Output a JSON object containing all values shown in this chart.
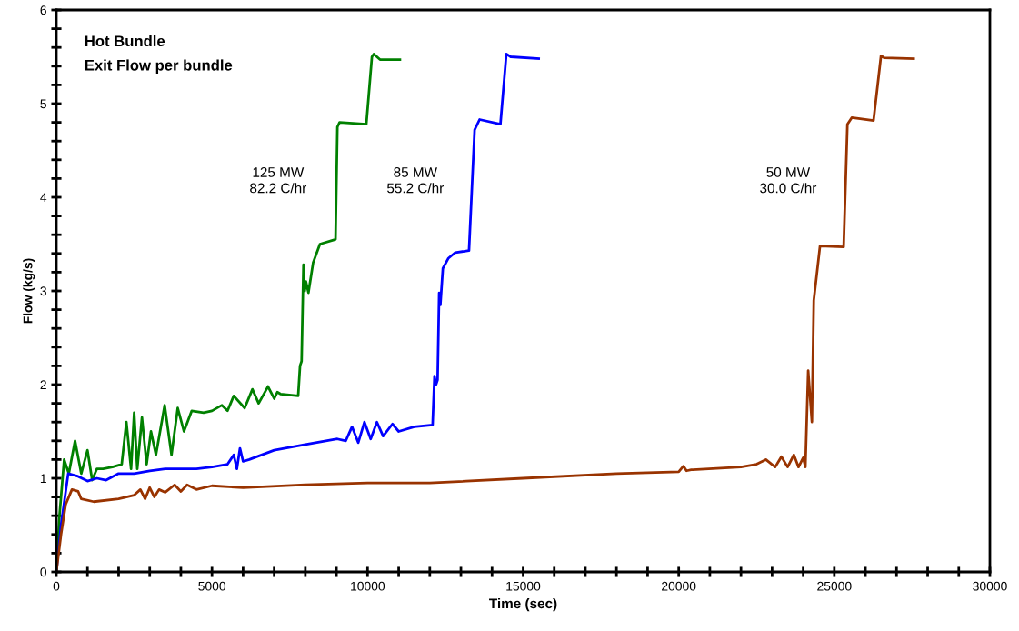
{
  "chart_data": {
    "type": "line",
    "title": "Hot Bundle",
    "subtitle": "Exit Flow per bundle",
    "xlabel": "Time (sec)",
    "ylabel": "Flow (kg/s)",
    "xlim": [
      0,
      30000
    ],
    "ylim": [
      0,
      6
    ],
    "xticks": [
      0,
      {
        "value": 1000,
        "label": null
      },
      {
        "value": 2000,
        "label": null
      },
      {
        "value": 3000,
        "label": null
      },
      {
        "value": 4000,
        "label": null
      },
      5000,
      {
        "value": 6000,
        "label": null
      },
      {
        "value": 7000,
        "label": null
      },
      {
        "value": 8000,
        "label": null
      },
      {
        "value": 9000,
        "label": null
      },
      10000,
      {
        "value": 11000,
        "label": null
      },
      {
        "value": 12000,
        "label": null
      },
      {
        "value": 13000,
        "label": null
      },
      {
        "value": 14000,
        "label": null
      },
      15000,
      {
        "value": 16000,
        "label": null
      },
      {
        "value": 17000,
        "label": null
      },
      {
        "value": 18000,
        "label": null
      },
      {
        "value": 19000,
        "label": null
      },
      20000,
      {
        "value": 21000,
        "label": null
      },
      {
        "value": 22000,
        "label": null
      },
      {
        "value": 23000,
        "label": null
      },
      {
        "value": 24000,
        "label": null
      },
      25000,
      {
        "value": 26000,
        "label": null
      },
      {
        "value": 27000,
        "label": null
      },
      {
        "value": 28000,
        "label": null
      },
      {
        "value": 29000,
        "label": null
      },
      30000
    ],
    "yticks": [
      0,
      {
        "value": 0.2,
        "label": null
      },
      {
        "value": 0.4,
        "label": null
      },
      {
        "value": 0.6,
        "label": null
      },
      {
        "value": 0.8,
        "label": null
      },
      1,
      {
        "value": 1.2,
        "label": null
      },
      {
        "value": 1.4,
        "label": null
      },
      {
        "value": 1.6,
        "label": null
      },
      {
        "value": 1.8,
        "label": null
      },
      2,
      {
        "value": 2.2,
        "label": null
      },
      {
        "value": 2.4,
        "label": null
      },
      {
        "value": 2.6,
        "label": null
      },
      {
        "value": 2.8,
        "label": null
      },
      3,
      {
        "value": 3.2,
        "label": null
      },
      {
        "value": 3.4,
        "label": null
      },
      {
        "value": 3.6,
        "label": null
      },
      {
        "value": 3.8,
        "label": null
      },
      4,
      {
        "value": 4.2,
        "label": null
      },
      {
        "value": 4.4,
        "label": null
      },
      {
        "value": 4.6,
        "label": null
      },
      {
        "value": 4.8,
        "label": null
      },
      5,
      {
        "value": 5.2,
        "label": null
      },
      {
        "value": 5.4,
        "label": null
      },
      {
        "value": 5.6,
        "label": null
      },
      {
        "value": 5.8,
        "label": null
      },
      6
    ],
    "grid": false,
    "legend": false,
    "marker": "none",
    "line_style": "solid",
    "series": [
      {
        "name": "125 MW\n82.2 C/hr",
        "color": "#008000",
        "x": [
          0,
          100,
          250,
          400,
          600,
          800,
          1000,
          1150,
          1300,
          1500,
          1800,
          2100,
          2250,
          2400,
          2500,
          2600,
          2750,
          2900,
          3040,
          3200,
          3480,
          3700,
          3900,
          4100,
          4350,
          4730,
          5000,
          5320,
          5500,
          5700,
          6050,
          6300,
          6500,
          6800,
          7000,
          7100,
          7200,
          7770,
          7830,
          7880,
          7940,
          7980,
          8020,
          8100,
          8250,
          8470,
          8970,
          9030,
          9100,
          9960,
          10140,
          10200,
          10400,
          11040
        ],
        "values": [
          0,
          0.6,
          1.2,
          1.05,
          1.4,
          1.05,
          1.3,
          0.98,
          1.1,
          1.1,
          1.12,
          1.15,
          1.6,
          1.1,
          1.7,
          1.1,
          1.65,
          1.15,
          1.5,
          1.25,
          1.78,
          1.25,
          1.75,
          1.5,
          1.72,
          1.7,
          1.72,
          1.78,
          1.72,
          1.88,
          1.75,
          1.95,
          1.8,
          1.98,
          1.85,
          1.92,
          1.9,
          1.88,
          2.2,
          2.25,
          3.28,
          3.0,
          3.1,
          2.98,
          3.3,
          3.5,
          3.55,
          4.75,
          4.8,
          4.78,
          5.5,
          5.53,
          5.47,
          5.47
        ]
      },
      {
        "name": "85 MW\n55.2 C/hr",
        "color": "#0000ff",
        "x": [
          0,
          150,
          380,
          700,
          1000,
          1300,
          1600,
          2000,
          2500,
          3000,
          3500,
          4000,
          4500,
          5000,
          5500,
          5700,
          5800,
          5900,
          6000,
          6200,
          7000,
          8000,
          9030,
          9300,
          9500,
          9700,
          9900,
          10100,
          10300,
          10500,
          10800,
          11000,
          11500,
          12090,
          12150,
          12200,
          12250,
          12300,
          12340,
          12420,
          12600,
          12820,
          13260,
          13440,
          13600,
          14270,
          14460,
          14600,
          15500
        ],
        "values": [
          0,
          0.5,
          1.05,
          1.02,
          0.97,
          1.0,
          0.98,
          1.05,
          1.05,
          1.08,
          1.1,
          1.1,
          1.1,
          1.12,
          1.15,
          1.25,
          1.1,
          1.32,
          1.18,
          1.2,
          1.3,
          1.36,
          1.42,
          1.4,
          1.55,
          1.38,
          1.6,
          1.42,
          1.6,
          1.45,
          1.58,
          1.5,
          1.55,
          1.57,
          2.09,
          2.0,
          2.05,
          2.98,
          2.85,
          3.24,
          3.35,
          3.41,
          3.43,
          4.72,
          4.83,
          4.78,
          5.53,
          5.5,
          5.48
        ]
      },
      {
        "name": "50 MW\n30.0 C/hr",
        "color": "#993300",
        "x": [
          0,
          150,
          300,
          500,
          700,
          800,
          1200,
          2000,
          2500,
          2700,
          2850,
          3000,
          3150,
          3300,
          3500,
          3800,
          4000,
          4200,
          4500,
          5000,
          6000,
          8000,
          10000,
          12000,
          15000,
          18000,
          20000,
          20150,
          20250,
          20400,
          22000,
          22500,
          22800,
          23100,
          23300,
          23500,
          23700,
          23850,
          24000,
          24070,
          24160,
          24280,
          24340,
          24540,
          25300,
          25420,
          25560,
          26260,
          26500,
          26600,
          27550
        ],
        "values": [
          0,
          0.4,
          0.72,
          0.88,
          0.86,
          0.78,
          0.75,
          0.78,
          0.82,
          0.88,
          0.78,
          0.9,
          0.8,
          0.88,
          0.85,
          0.93,
          0.86,
          0.93,
          0.88,
          0.92,
          0.9,
          0.93,
          0.95,
          0.95,
          1.0,
          1.05,
          1.07,
          1.13,
          1.08,
          1.09,
          1.12,
          1.15,
          1.2,
          1.12,
          1.23,
          1.12,
          1.25,
          1.12,
          1.22,
          1.12,
          2.15,
          1.6,
          2.9,
          3.48,
          3.47,
          4.78,
          4.85,
          4.82,
          5.51,
          5.49,
          5.48
        ]
      }
    ]
  }
}
